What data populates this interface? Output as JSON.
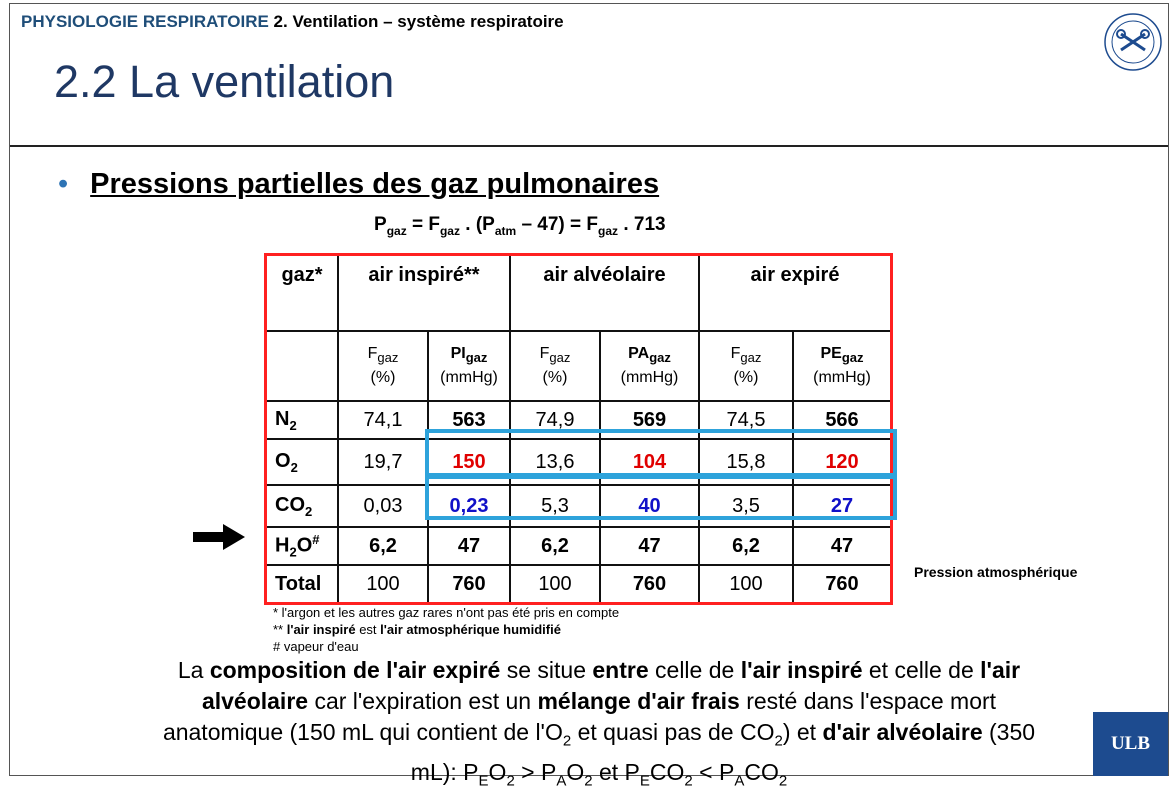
{
  "header": {
    "course": "PHYSIOLOGIE RESPIRATOIRE",
    "chapter": "2. Ventilation – système respiratoire",
    "title": "2.2 La ventilation"
  },
  "bullet": {
    "marker": "•",
    "text": "Pressions partielles des gaz pulmonaires"
  },
  "formula": {
    "p": "P",
    "gaz": "gaz",
    "eq1": " = F",
    "dot1": " . (P",
    "atm": "atm",
    "mid": " – 47) = F",
    "tail": " . 713"
  },
  "table": {
    "headers": [
      "gaz*",
      "air inspiré**",
      "air alvéolaire",
      "air expiré"
    ],
    "sub": {
      "fgaz": "F",
      "gaz": "gaz",
      "pct": "(%)",
      "mmhg": "(mmHg)",
      "pi": "PI",
      "pa": "PA",
      "pe": "PE"
    },
    "rows": [
      {
        "gas": "N",
        "idx": "2",
        "sup": "",
        "vals": [
          "74,1",
          "563",
          "74,9",
          "569",
          "74,5",
          "566"
        ]
      },
      {
        "gas": "O",
        "idx": "2",
        "sup": "",
        "vals": [
          "19,7",
          "150",
          "13,6",
          "104",
          "15,8",
          "120"
        ]
      },
      {
        "gas": "CO",
        "idx": "2",
        "sup": "",
        "vals": [
          "0,03",
          "0,23",
          "5,3",
          "40",
          "3,5",
          "27"
        ]
      },
      {
        "gas": "H",
        "idx": "2",
        "sup": "O",
        "sup2": "#",
        "vals": [
          "6,2",
          "47",
          "6,2",
          "47",
          "6,2",
          "47"
        ]
      },
      {
        "gas": "Total",
        "vals": [
          "100",
          "760",
          "100",
          "760",
          "100",
          "760"
        ]
      }
    ]
  },
  "pressure_label": "Pression atmosphérique",
  "notes": {
    "n1": "* l'argon et les autres gaz rares n'ont pas été pris en compte",
    "n2_pre": "** ",
    "n2_b1": "l'air inspiré",
    "n2_mid": " est ",
    "n2_b2": "l'air atmosphérique humidifié",
    "n3": "# vapeur d'eau"
  },
  "paragraph": {
    "p1": "La ",
    "b1": "composition de l'air expiré",
    "p2": " se situe ",
    "b2": "entre",
    "p3": " celle de ",
    "b3": "l'air inspiré",
    "p4": " et celle de ",
    "b4": "l'air alvéolaire",
    "p5": " car l'expiration est un ",
    "b5": "mélange d'air frais",
    "p6": " resté dans l'espace mort anatomique (150 mL qui contient de l'O",
    "s2": "2",
    "p7": " et quasi pas de CO",
    "p8": ") et ",
    "b6": "d'air alvéolaire",
    "p9": " (350 mL): P",
    "E": "E",
    "A": "A",
    "o2": "O",
    "gt": " > P",
    "et": " et P",
    "co2": "CO",
    "lt": " < P"
  },
  "logo": {
    "text": "ULB"
  },
  "colors": {
    "title": "#1f3864",
    "table_border": "#ff2020",
    "highlight": "#2ea3db",
    "red": "#e00000",
    "blue": "#1010c8",
    "ulb_bg": "#1d4b8f"
  }
}
